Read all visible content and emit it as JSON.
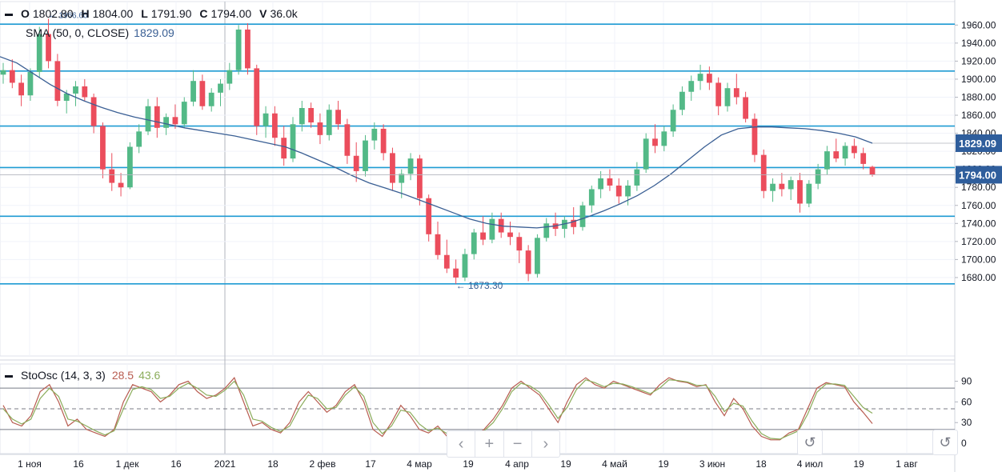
{
  "ohlc_legend": {
    "open_label": "O",
    "open": "1802.80",
    "high_label": "H",
    "high": "1804.00",
    "low_label": "L",
    "low": "1791.90",
    "close_label": "C",
    "close": "1794.00",
    "volume_label": "V",
    "volume": "36.0k"
  },
  "sma_legend": {
    "label": "SMA (50, 0, CLOSE)",
    "value": "1829.09"
  },
  "stoch_legend": {
    "label": "StoOsc (14, 3, 3)",
    "k_value": "28.5",
    "d_value": "43.6"
  },
  "navigation": {
    "prev": "‹",
    "zoom_in": "+",
    "zoom_out": "−",
    "next": "›",
    "reset": "↺"
  },
  "colors": {
    "up": "#53b987",
    "down": "#eb4d5c",
    "sma": "#3a5f94",
    "hlines": "#1e9bd3",
    "stoch_k": "#b85c50",
    "stoch_d": "#8bac5b",
    "badge": "#2f5e9c"
  },
  "chart_data": [
    {
      "type": "candlestick",
      "y_ticks": [
        1680,
        1700,
        1720,
        1740,
        1760,
        1780,
        1800,
        1820,
        1840,
        1860,
        1880,
        1900,
        1920,
        1940,
        1960
      ],
      "y_range": [
        1593,
        1986
      ],
      "x_tick_labels": [
        "1 ноя",
        "16",
        "1 дек",
        "16",
        "2021",
        "18",
        "2 фев",
        "17",
        "4 мар",
        "19",
        "4 апр",
        "19",
        "4 май",
        "19",
        "3 июн",
        "18",
        "4 июл",
        "19",
        "1 авг"
      ],
      "horizontal_levels": [
        1961,
        1909,
        1848,
        1802,
        1748,
        1673
      ],
      "low_annotation": "← 1673.30",
      "high_annotation": "← 1966.60",
      "last_price_label": "1794.00",
      "sma_label": "1829.09",
      "sma_series": [
        1925,
        1918,
        1906,
        1894,
        1884,
        1876,
        1869,
        1863,
        1858,
        1854,
        1850,
        1846,
        1843,
        1840,
        1837,
        1833,
        1829,
        1825,
        1818,
        1810,
        1802,
        1793,
        1785,
        1779,
        1773,
        1766,
        1759,
        1752,
        1745,
        1740,
        1737,
        1736,
        1735,
        1737,
        1741,
        1747,
        1754,
        1762,
        1771,
        1782,
        1795,
        1810,
        1825,
        1838,
        1845,
        1847,
        1847,
        1846,
        1845,
        1843,
        1840,
        1836,
        1829
      ],
      "candles": [
        [
          1905,
          1918,
          1895,
          1910
        ],
        [
          1910,
          1922,
          1890,
          1896
        ],
        [
          1896,
          1905,
          1870,
          1882
        ],
        [
          1882,
          1912,
          1876,
          1908
        ],
        [
          1908,
          1958,
          1902,
          1950
        ],
        [
          1950,
          1967,
          1912,
          1920
        ],
        [
          1920,
          1928,
          1870,
          1876
        ],
        [
          1876,
          1888,
          1862,
          1884
        ],
        [
          1884,
          1898,
          1870,
          1892
        ],
        [
          1892,
          1900,
          1876,
          1880
        ],
        [
          1880,
          1884,
          1840,
          1848
        ],
        [
          1848,
          1852,
          1790,
          1800
        ],
        [
          1800,
          1818,
          1776,
          1785
        ],
        [
          1785,
          1796,
          1770,
          1780
        ],
        [
          1780,
          1830,
          1778,
          1825
        ],
        [
          1825,
          1850,
          1818,
          1842
        ],
        [
          1842,
          1878,
          1838,
          1870
        ],
        [
          1870,
          1880,
          1835,
          1846
        ],
        [
          1846,
          1862,
          1838,
          1858
        ],
        [
          1858,
          1872,
          1845,
          1850
        ],
        [
          1850,
          1880,
          1846,
          1875
        ],
        [
          1875,
          1910,
          1870,
          1898
        ],
        [
          1898,
          1905,
          1866,
          1870
        ],
        [
          1870,
          1890,
          1864,
          1885
        ],
        [
          1885,
          1900,
          1870,
          1895
        ],
        [
          1895,
          1918,
          1888,
          1910
        ],
        [
          1910,
          1960,
          1905,
          1955
        ],
        [
          1955,
          1962,
          1905,
          1912
        ],
        [
          1912,
          1916,
          1838,
          1848
        ],
        [
          1848,
          1870,
          1835,
          1862
        ],
        [
          1862,
          1870,
          1826,
          1835
        ],
        [
          1835,
          1848,
          1804,
          1812
        ],
        [
          1812,
          1858,
          1808,
          1850
        ],
        [
          1850,
          1876,
          1842,
          1868
        ],
        [
          1868,
          1874,
          1846,
          1852
        ],
        [
          1852,
          1862,
          1828,
          1838
        ],
        [
          1838,
          1872,
          1832,
          1866
        ],
        [
          1866,
          1876,
          1844,
          1850
        ],
        [
          1850,
          1856,
          1806,
          1815
        ],
        [
          1815,
          1830,
          1786,
          1798
        ],
        [
          1798,
          1838,
          1792,
          1832
        ],
        [
          1832,
          1852,
          1822,
          1845
        ],
        [
          1845,
          1850,
          1810,
          1818
        ],
        [
          1818,
          1824,
          1776,
          1785
        ],
        [
          1785,
          1800,
          1768,
          1795
        ],
        [
          1795,
          1818,
          1788,
          1812
        ],
        [
          1812,
          1816,
          1760,
          1768
        ],
        [
          1768,
          1772,
          1720,
          1728
        ],
        [
          1728,
          1742,
          1700,
          1705
        ],
        [
          1705,
          1722,
          1685,
          1690
        ],
        [
          1690,
          1700,
          1673,
          1680
        ],
        [
          1680,
          1712,
          1676,
          1706
        ],
        [
          1706,
          1734,
          1700,
          1730
        ],
        [
          1730,
          1748,
          1716,
          1722
        ],
        [
          1722,
          1752,
          1718,
          1745
        ],
        [
          1745,
          1752,
          1724,
          1730
        ],
        [
          1730,
          1742,
          1716,
          1725
        ],
        [
          1725,
          1730,
          1696,
          1710
        ],
        [
          1710,
          1716,
          1676,
          1684
        ],
        [
          1684,
          1728,
          1680,
          1724
        ],
        [
          1724,
          1746,
          1720,
          1740
        ],
        [
          1740,
          1752,
          1726,
          1734
        ],
        [
          1734,
          1748,
          1724,
          1744
        ],
        [
          1744,
          1758,
          1728,
          1736
        ],
        [
          1736,
          1764,
          1732,
          1760
        ],
        [
          1760,
          1782,
          1752,
          1778
        ],
        [
          1778,
          1798,
          1768,
          1790
        ],
        [
          1790,
          1800,
          1776,
          1782
        ],
        [
          1782,
          1790,
          1762,
          1770
        ],
        [
          1770,
          1788,
          1760,
          1782
        ],
        [
          1782,
          1808,
          1776,
          1800
        ],
        [
          1800,
          1840,
          1796,
          1834
        ],
        [
          1834,
          1850,
          1818,
          1826
        ],
        [
          1826,
          1848,
          1820,
          1842
        ],
        [
          1842,
          1872,
          1836,
          1866
        ],
        [
          1866,
          1892,
          1860,
          1886
        ],
        [
          1886,
          1904,
          1876,
          1898
        ],
        [
          1898,
          1916,
          1888,
          1906
        ],
        [
          1906,
          1914,
          1888,
          1896
        ],
        [
          1896,
          1902,
          1860,
          1870
        ],
        [
          1870,
          1896,
          1864,
          1890
        ],
        [
          1890,
          1906,
          1872,
          1880
        ],
        [
          1880,
          1886,
          1852,
          1856
        ],
        [
          1856,
          1862,
          1808,
          1816
        ],
        [
          1816,
          1822,
          1768,
          1776
        ],
        [
          1776,
          1790,
          1764,
          1784
        ],
        [
          1784,
          1796,
          1770,
          1778
        ],
        [
          1778,
          1792,
          1766,
          1788
        ],
        [
          1788,
          1796,
          1752,
          1762
        ],
        [
          1762,
          1788,
          1758,
          1784
        ],
        [
          1784,
          1806,
          1778,
          1800
        ],
        [
          1800,
          1826,
          1794,
          1820
        ],
        [
          1820,
          1834,
          1808,
          1812
        ],
        [
          1812,
          1830,
          1804,
          1826
        ],
        [
          1826,
          1834,
          1812,
          1818
        ],
        [
          1818,
          1824,
          1800,
          1806
        ],
        [
          1802.8,
          1804,
          1791.9,
          1794
        ]
      ]
    },
    {
      "type": "line",
      "title": "StoOsc (14, 3, 3)",
      "y_ticks": [
        0,
        30,
        60,
        90
      ],
      "y_range": [
        -15,
        115
      ],
      "reference_levels": [
        80,
        50,
        20
      ],
      "series": [
        {
          "name": "%K",
          "values": [
            55,
            30,
            25,
            40,
            75,
            85,
            60,
            25,
            35,
            20,
            15,
            10,
            20,
            60,
            85,
            80,
            75,
            60,
            70,
            85,
            90,
            75,
            65,
            70,
            80,
            95,
            60,
            25,
            30,
            20,
            15,
            30,
            60,
            75,
            60,
            45,
            55,
            75,
            85,
            60,
            20,
            10,
            30,
            55,
            40,
            20,
            15,
            25,
            10,
            5,
            15,
            10,
            20,
            35,
            55,
            80,
            90,
            80,
            70,
            50,
            30,
            60,
            85,
            95,
            85,
            80,
            90,
            85,
            80,
            75,
            70,
            85,
            95,
            90,
            88,
            82,
            85,
            60,
            40,
            65,
            50,
            25,
            10,
            5,
            5,
            15,
            20,
            50,
            80,
            88,
            85,
            82,
            60,
            45,
            28.5
          ]
        },
        {
          "name": "%D",
          "values": [
            50,
            35,
            28,
            35,
            65,
            80,
            68,
            35,
            32,
            25,
            18,
            12,
            18,
            50,
            78,
            82,
            78,
            65,
            68,
            80,
            87,
            80,
            70,
            68,
            77,
            90,
            70,
            35,
            32,
            23,
            17,
            25,
            50,
            70,
            65,
            50,
            52,
            70,
            82,
            68,
            30,
            14,
            25,
            48,
            45,
            28,
            18,
            22,
            14,
            8,
            12,
            12,
            18,
            30,
            50,
            75,
            87,
            83,
            74,
            56,
            36,
            52,
            78,
            92,
            88,
            82,
            87,
            86,
            82,
            77,
            72,
            80,
            92,
            91,
            89,
            84,
            84,
            68,
            46,
            58,
            54,
            32,
            14,
            7,
            6,
            12,
            18,
            42,
            74,
            86,
            86,
            84,
            68,
            52,
            43.6
          ]
        }
      ]
    }
  ]
}
